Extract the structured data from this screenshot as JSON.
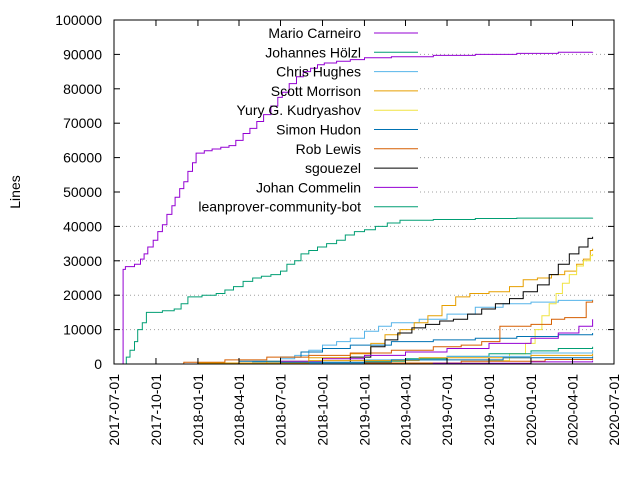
{
  "chart_data": {
    "type": "line",
    "title": "",
    "xlabel": "",
    "ylabel": "Lines",
    "x_axis_type": "date",
    "xlim": [
      "2017-07-01",
      "2020-07-01"
    ],
    "ylim": [
      0,
      100000
    ],
    "yticks": [
      0,
      10000,
      20000,
      30000,
      40000,
      50000,
      60000,
      70000,
      80000,
      90000,
      100000
    ],
    "xticks": [
      "2017-07-01",
      "2017-10-01",
      "2018-01-01",
      "2018-04-01",
      "2018-07-01",
      "2018-10-01",
      "2019-01-01",
      "2019-04-01",
      "2019-07-01",
      "2019-10-01",
      "2020-01-01",
      "2020-04-01",
      "2020-07-01"
    ],
    "grid": "horizontal dotted at 40000 and above",
    "legend_position": "top-left",
    "series": [
      {
        "name": "Mario Carneiro",
        "color": "#9400d3",
        "points": [
          [
            "2017-07-20",
            0
          ],
          [
            "2017-07-21",
            27500
          ],
          [
            "2017-07-26",
            28300
          ],
          [
            "2017-08-15",
            29000
          ],
          [
            "2017-08-28",
            30500
          ],
          [
            "2017-09-05",
            32000
          ],
          [
            "2017-09-13",
            34000
          ],
          [
            "2017-09-25",
            36000
          ],
          [
            "2017-10-05",
            38500
          ],
          [
            "2017-10-15",
            40500
          ],
          [
            "2017-10-25",
            43500
          ],
          [
            "2017-11-05",
            46000
          ],
          [
            "2017-11-12",
            48500
          ],
          [
            "2017-11-22",
            51000
          ],
          [
            "2017-12-01",
            53000
          ],
          [
            "2017-12-10",
            56000
          ],
          [
            "2017-12-20",
            58500
          ],
          [
            "2017-12-28",
            61300
          ],
          [
            "2018-01-15",
            62000
          ],
          [
            "2018-02-01",
            62500
          ],
          [
            "2018-02-20",
            63000
          ],
          [
            "2018-03-10",
            63500
          ],
          [
            "2018-03-25",
            65000
          ],
          [
            "2018-04-10",
            67000
          ],
          [
            "2018-04-25",
            68500
          ],
          [
            "2018-05-10",
            70500
          ],
          [
            "2018-05-25",
            72500
          ],
          [
            "2018-06-10",
            75000
          ],
          [
            "2018-06-25",
            77500
          ],
          [
            "2018-07-05",
            79000
          ],
          [
            "2018-07-20",
            81500
          ],
          [
            "2018-08-05",
            83500
          ],
          [
            "2018-08-20",
            85000
          ],
          [
            "2018-09-05",
            86000
          ],
          [
            "2018-09-20",
            87000
          ],
          [
            "2018-10-05",
            87500
          ],
          [
            "2018-11-01",
            88000
          ],
          [
            "2018-12-01",
            88500
          ],
          [
            "2019-01-01",
            89000
          ],
          [
            "2019-03-01",
            89300
          ],
          [
            "2019-06-01",
            89700
          ],
          [
            "2019-09-01",
            90000
          ],
          [
            "2019-12-01",
            90300
          ],
          [
            "2020-03-01",
            90600
          ],
          [
            "2020-05-15",
            90700
          ]
        ]
      },
      {
        "name": "Johannes Hölzl",
        "color": "#009e73",
        "points": [
          [
            "2017-07-22",
            0
          ],
          [
            "2017-07-28",
            2000
          ],
          [
            "2017-08-05",
            4000
          ],
          [
            "2017-08-15",
            6500
          ],
          [
            "2017-08-22",
            10000
          ],
          [
            "2017-09-01",
            12000
          ],
          [
            "2017-09-10",
            15000
          ],
          [
            "2017-10-15",
            15500
          ],
          [
            "2017-11-10",
            16000
          ],
          [
            "2017-11-25",
            17500
          ],
          [
            "2017-12-10",
            19500
          ],
          [
            "2018-01-10",
            20000
          ],
          [
            "2018-02-10",
            20500
          ],
          [
            "2018-03-01",
            21500
          ],
          [
            "2018-03-20",
            22500
          ],
          [
            "2018-04-10",
            24000
          ],
          [
            "2018-05-01",
            25000
          ],
          [
            "2018-05-20",
            25500
          ],
          [
            "2018-06-10",
            26000
          ],
          [
            "2018-07-01",
            27000
          ],
          [
            "2018-07-15",
            29000
          ],
          [
            "2018-08-01",
            30000
          ],
          [
            "2018-08-15",
            32000
          ],
          [
            "2018-09-01",
            33000
          ],
          [
            "2018-09-20",
            34000
          ],
          [
            "2018-10-10",
            35000
          ],
          [
            "2018-11-01",
            36000
          ],
          [
            "2018-11-20",
            37500
          ],
          [
            "2018-12-10",
            38500
          ],
          [
            "2019-01-01",
            39000
          ],
          [
            "2019-01-25",
            40000
          ],
          [
            "2019-02-20",
            41000
          ],
          [
            "2019-03-20",
            41800
          ],
          [
            "2019-06-01",
            42000
          ],
          [
            "2019-09-01",
            42300
          ],
          [
            "2019-12-01",
            42400
          ],
          [
            "2020-05-15",
            42500
          ]
        ]
      },
      {
        "name": "Chris Hughes",
        "color": "#56b4e9",
        "points": [
          [
            "2017-07-01",
            0
          ],
          [
            "2018-03-01",
            200
          ],
          [
            "2018-05-01",
            600
          ],
          [
            "2018-07-01",
            1500
          ],
          [
            "2018-08-01",
            2500
          ],
          [
            "2018-09-01",
            4000
          ],
          [
            "2018-10-01",
            5500
          ],
          [
            "2018-11-01",
            6500
          ],
          [
            "2018-12-01",
            7500
          ],
          [
            "2019-01-01",
            9500
          ],
          [
            "2019-02-01",
            11000
          ],
          [
            "2019-03-01",
            12000
          ],
          [
            "2019-05-01",
            13000
          ],
          [
            "2019-07-01",
            14500
          ],
          [
            "2019-09-01",
            16500
          ],
          [
            "2019-11-01",
            17500
          ],
          [
            "2020-01-01",
            18000
          ],
          [
            "2020-03-01",
            18500
          ],
          [
            "2020-05-15",
            18700
          ]
        ]
      },
      {
        "name": "Scott Morrison",
        "color": "#e69f00",
        "points": [
          [
            "2017-07-01",
            0
          ],
          [
            "2018-03-01",
            300
          ],
          [
            "2018-06-01",
            800
          ],
          [
            "2018-09-01",
            1800
          ],
          [
            "2018-12-01",
            3000
          ],
          [
            "2019-01-15",
            6000
          ],
          [
            "2019-02-15",
            8500
          ],
          [
            "2019-03-20",
            10000
          ],
          [
            "2019-04-20",
            12000
          ],
          [
            "2019-05-20",
            14000
          ],
          [
            "2019-06-20",
            17000
          ],
          [
            "2019-07-20",
            19500
          ],
          [
            "2019-08-20",
            20500
          ],
          [
            "2019-10-01",
            21000
          ],
          [
            "2019-11-15",
            22500
          ],
          [
            "2019-12-15",
            24500
          ],
          [
            "2020-01-15",
            25000
          ],
          [
            "2020-02-15",
            26000
          ],
          [
            "2020-03-15",
            27000
          ],
          [
            "2020-04-10",
            29000
          ],
          [
            "2020-04-25",
            30500
          ],
          [
            "2020-05-10",
            33000
          ],
          [
            "2020-05-15",
            33500
          ]
        ]
      },
      {
        "name": "Yury G. Kudryashov",
        "color": "#f0e442",
        "points": [
          [
            "2017-07-01",
            0
          ],
          [
            "2019-03-01",
            0
          ],
          [
            "2019-07-01",
            300
          ],
          [
            "2019-10-01",
            1000
          ],
          [
            "2019-11-15",
            3000
          ],
          [
            "2019-12-20",
            6000
          ],
          [
            "2020-01-10",
            10000
          ],
          [
            "2020-01-25",
            14000
          ],
          [
            "2020-02-10",
            17500
          ],
          [
            "2020-02-25",
            20500
          ],
          [
            "2020-03-10",
            23500
          ],
          [
            "2020-03-25",
            26000
          ],
          [
            "2020-04-10",
            28500
          ],
          [
            "2020-04-25",
            30000
          ],
          [
            "2020-05-10",
            31500
          ],
          [
            "2020-05-15",
            32000
          ]
        ]
      },
      {
        "name": "Simon Hudon",
        "color": "#0072b2",
        "points": [
          [
            "2017-07-01",
            0
          ],
          [
            "2018-01-01",
            300
          ],
          [
            "2018-04-01",
            800
          ],
          [
            "2018-07-01",
            2000
          ],
          [
            "2018-08-15",
            3500
          ],
          [
            "2018-10-01",
            4500
          ],
          [
            "2018-12-01",
            5500
          ],
          [
            "2019-03-01",
            6500
          ],
          [
            "2019-06-01",
            7000
          ],
          [
            "2019-09-01",
            7500
          ],
          [
            "2019-12-01",
            8000
          ],
          [
            "2020-03-01",
            8500
          ],
          [
            "2020-05-15",
            9000
          ]
        ]
      },
      {
        "name": "Rob Lewis",
        "color": "#d55e00",
        "points": [
          [
            "2017-07-01",
            0
          ],
          [
            "2017-12-01",
            500
          ],
          [
            "2018-03-01",
            1200
          ],
          [
            "2018-06-01",
            2000
          ],
          [
            "2018-09-01",
            2500
          ],
          [
            "2018-12-01",
            3200
          ],
          [
            "2019-03-01",
            4000
          ],
          [
            "2019-06-01",
            5000
          ],
          [
            "2019-08-01",
            5500
          ],
          [
            "2019-09-15",
            6500
          ],
          [
            "2019-10-25",
            11000
          ],
          [
            "2020-01-01",
            11500
          ],
          [
            "2020-02-15",
            13000
          ],
          [
            "2020-03-15",
            13500
          ],
          [
            "2020-05-01",
            18000
          ],
          [
            "2020-05-15",
            18500
          ]
        ]
      },
      {
        "name": "sgouezel",
        "color": "#000000",
        "points": [
          [
            "2017-07-01",
            0
          ],
          [
            "2018-10-01",
            0
          ],
          [
            "2018-12-01",
            2000
          ],
          [
            "2019-01-15",
            5000
          ],
          [
            "2019-02-15",
            7000
          ],
          [
            "2019-03-15",
            9000
          ],
          [
            "2019-04-15",
            10500
          ],
          [
            "2019-05-15",
            11500
          ],
          [
            "2019-06-15",
            12500
          ],
          [
            "2019-07-15",
            13000
          ],
          [
            "2019-08-15",
            14500
          ],
          [
            "2019-09-15",
            16000
          ],
          [
            "2019-10-15",
            17500
          ],
          [
            "2019-11-15",
            19000
          ],
          [
            "2019-12-15",
            21000
          ],
          [
            "2020-01-15",
            23000
          ],
          [
            "2020-02-10",
            26000
          ],
          [
            "2020-03-01",
            29000
          ],
          [
            "2020-03-25",
            32000
          ],
          [
            "2020-04-15",
            34000
          ],
          [
            "2020-05-05",
            36500
          ],
          [
            "2020-05-15",
            37000
          ]
        ]
      },
      {
        "name": "Johan Commelin",
        "color": "#9400d3",
        "points": [
          [
            "2017-07-01",
            0
          ],
          [
            "2018-04-01",
            200
          ],
          [
            "2018-07-01",
            800
          ],
          [
            "2018-10-01",
            1500
          ],
          [
            "2019-01-01",
            2500
          ],
          [
            "2019-04-01",
            3500
          ],
          [
            "2019-07-01",
            4500
          ],
          [
            "2019-10-01",
            6000
          ],
          [
            "2020-01-01",
            7500
          ],
          [
            "2020-03-01",
            9000
          ],
          [
            "2020-04-15",
            11000
          ],
          [
            "2020-05-15",
            13000
          ]
        ]
      },
      {
        "name": "leanprover-community-bot",
        "color": "#009e73",
        "points": [
          [
            "2017-07-01",
            0
          ],
          [
            "2018-10-01",
            0
          ],
          [
            "2019-01-01",
            800
          ],
          [
            "2019-04-01",
            1500
          ],
          [
            "2019-07-01",
            2200
          ],
          [
            "2019-10-01",
            3000
          ],
          [
            "2020-01-01",
            3800
          ],
          [
            "2020-03-01",
            4500
          ],
          [
            "2020-05-15",
            5000
          ]
        ]
      },
      {
        "name": "",
        "color": "#56b4e9",
        "points": [
          [
            "2017-07-01",
            0
          ],
          [
            "2018-06-01",
            300
          ],
          [
            "2019-01-01",
            1200
          ],
          [
            "2019-07-01",
            2200
          ],
          [
            "2020-01-01",
            3200
          ],
          [
            "2020-05-15",
            4000
          ]
        ]
      },
      {
        "name": "",
        "color": "#e69f00",
        "points": [
          [
            "2017-07-01",
            0
          ],
          [
            "2018-01-01",
            300
          ],
          [
            "2018-09-01",
            1000
          ],
          [
            "2019-05-01",
            1800
          ],
          [
            "2020-01-01",
            2500
          ],
          [
            "2020-05-15",
            3000
          ]
        ]
      },
      {
        "name": "",
        "color": "#0072b2",
        "points": [
          [
            "2017-07-01",
            0
          ],
          [
            "2018-07-01",
            500
          ],
          [
            "2019-03-01",
            1200
          ],
          [
            "2019-11-01",
            1800
          ],
          [
            "2020-05-15",
            2200
          ]
        ]
      },
      {
        "name": "",
        "color": "#d55e00",
        "points": [
          [
            "2017-07-01",
            0
          ],
          [
            "2019-01-01",
            300
          ],
          [
            "2019-08-01",
            800
          ],
          [
            "2020-02-01",
            1300
          ],
          [
            "2020-05-15",
            1600
          ]
        ]
      },
      {
        "name": "",
        "color": "#9400d3",
        "points": [
          [
            "2017-07-01",
            0
          ],
          [
            "2019-06-01",
            200
          ],
          [
            "2020-01-01",
            600
          ],
          [
            "2020-05-15",
            1000
          ]
        ]
      }
    ]
  }
}
